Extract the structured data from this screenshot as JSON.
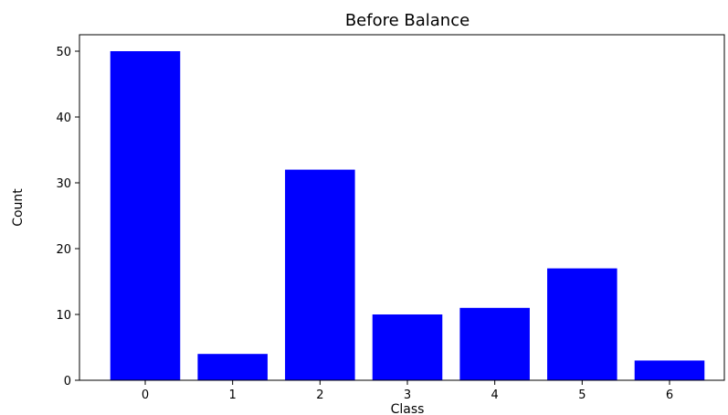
{
  "chart_data": {
    "type": "bar",
    "title": "Before Balance",
    "xlabel": "Class",
    "ylabel": "Count",
    "categories": [
      "0",
      "1",
      "2",
      "3",
      "4",
      "5",
      "6"
    ],
    "values": [
      50,
      4,
      32,
      10,
      11,
      17,
      3
    ],
    "yticks": [
      "0",
      "10",
      "20",
      "30",
      "40",
      "50"
    ],
    "ylim": [
      0,
      52.5
    ],
    "bar_color": "#0000ff",
    "grid": false,
    "legend": "none"
  }
}
